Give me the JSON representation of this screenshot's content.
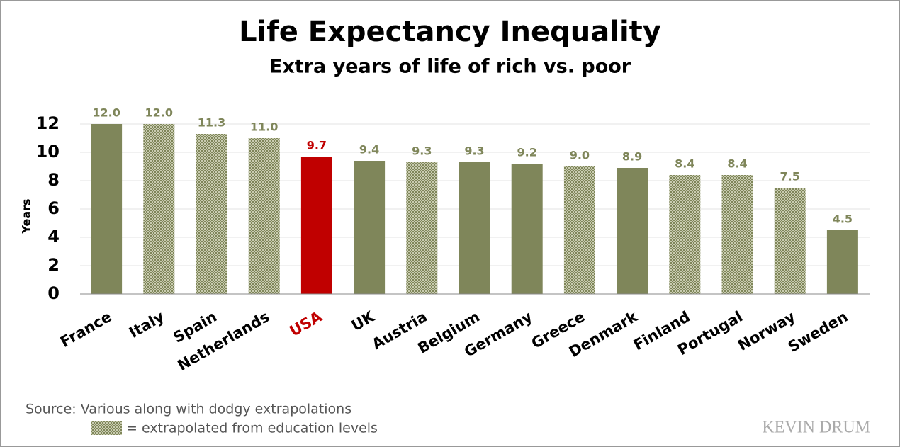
{
  "chart_data": {
    "type": "bar",
    "title": "Life Expectancy Inequality",
    "subtitle": "Extra years of life of rich vs. poor",
    "y_label": "Years",
    "categories": [
      "France",
      "Italy",
      "Spain",
      "Netherlands",
      "USA",
      "UK",
      "Austria",
      "Belgium",
      "Germany",
      "Greece",
      "Denmark",
      "Finland",
      "Portugal",
      "Norway",
      "Sweden"
    ],
    "values": [
      12.0,
      12.0,
      11.3,
      11.0,
      9.7,
      9.4,
      9.3,
      9.3,
      9.2,
      9.0,
      8.9,
      8.4,
      8.4,
      7.5,
      4.5
    ],
    "value_labels": [
      "12.0",
      "12.0",
      "11.3",
      "11.0",
      "9.7",
      "9.4",
      "9.3",
      "9.3",
      "9.2",
      "9.0",
      "8.9",
      "8.4",
      "8.4",
      "7.5",
      "4.5"
    ],
    "colors": [
      "#7f865a",
      "#7f865a",
      "#7f865a",
      "#7f865a",
      "#c00000",
      "#7f865a",
      "#7f865a",
      "#7f865a",
      "#7f865a",
      "#7f865a",
      "#7f865a",
      "#7f865a",
      "#7f865a",
      "#7f865a",
      "#7f865a"
    ],
    "category_colors": [
      "#000000",
      "#000000",
      "#000000",
      "#000000",
      "#c00000",
      "#000000",
      "#000000",
      "#000000",
      "#000000",
      "#000000",
      "#000000",
      "#000000",
      "#000000",
      "#000000",
      "#000000"
    ],
    "extrapolated": [
      false,
      true,
      true,
      true,
      false,
      false,
      true,
      false,
      false,
      true,
      false,
      true,
      true,
      true,
      false
    ],
    "ylim": [
      0,
      13
    ],
    "yticks": [
      0,
      2,
      4,
      6,
      8,
      10,
      12
    ],
    "grid": true,
    "source": "Source: Various along with dodgy extrapolations",
    "legend_text": "= extrapolated from education levels",
    "logo": "KEVIN DRUM"
  }
}
